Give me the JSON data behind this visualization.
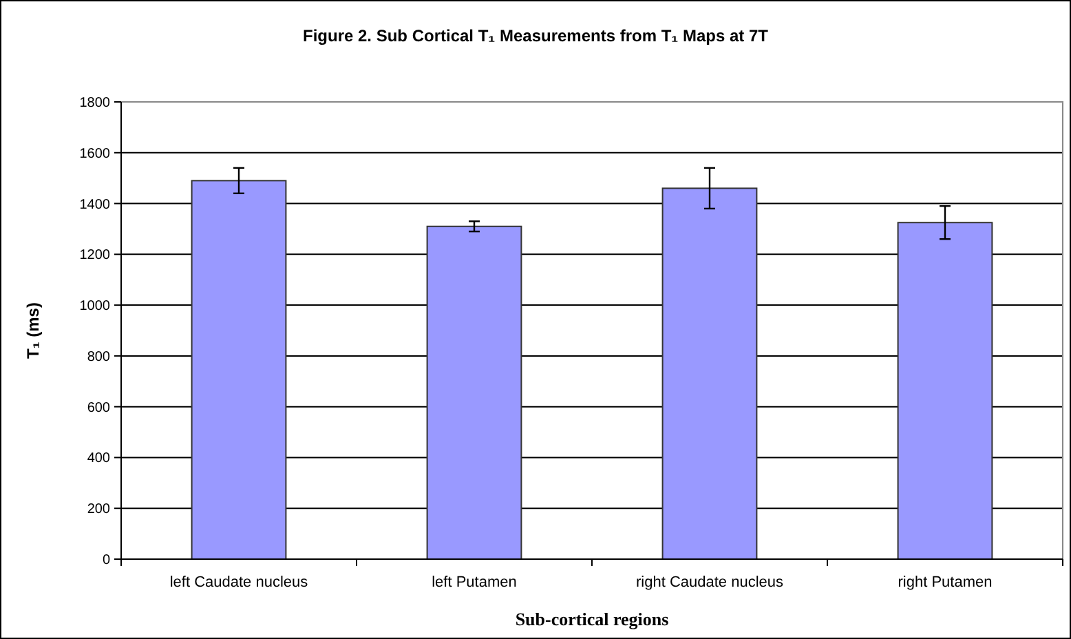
{
  "chart_data": {
    "type": "bar",
    "title": "Figure 2. Sub Cortical T₁ Measurements from T₁ Maps at 7T",
    "xlabel": "Sub-cortical regions",
    "ylabel": "T₁ (ms)",
    "categories": [
      "left Caudate nucleus",
      "left Putamen",
      "right Caudate nucleus",
      "right Putamen"
    ],
    "values": [
      1490,
      1310,
      1460,
      1325
    ],
    "errors": [
      50,
      20,
      80,
      65
    ],
    "color": "#9999ff",
    "ylim": [
      0,
      1800
    ],
    "yticks": [
      0,
      200,
      400,
      600,
      800,
      1000,
      1200,
      1400,
      1600,
      1800
    ],
    "grid": "y"
  }
}
